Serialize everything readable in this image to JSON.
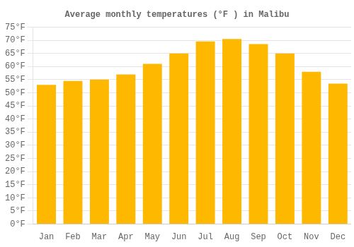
{
  "chart_data": {
    "type": "bar",
    "title": "Average monthly temperatures (°F ) in Malibu",
    "categories": [
      "Jan",
      "Feb",
      "Mar",
      "Apr",
      "May",
      "Jun",
      "Jul",
      "Aug",
      "Sep",
      "Oct",
      "Nov",
      "Dec"
    ],
    "values": [
      53,
      54.5,
      55,
      57,
      61,
      65,
      69.5,
      70.5,
      68.5,
      65,
      58,
      53.5
    ],
    "color": "#FFB800",
    "ylim": [
      0,
      75
    ],
    "yticks": [
      {
        "value": 0,
        "label": "0°F"
      },
      {
        "value": 5,
        "label": "5°F"
      },
      {
        "value": 10,
        "label": "10°F"
      },
      {
        "value": 15,
        "label": "15°F"
      },
      {
        "value": 20,
        "label": "20°F"
      },
      {
        "value": 25,
        "label": "25°F"
      },
      {
        "value": 30,
        "label": "30°F"
      },
      {
        "value": 35,
        "label": "35°F"
      },
      {
        "value": 40,
        "label": "40°F"
      },
      {
        "value": 45,
        "label": "45°F"
      },
      {
        "value": 50,
        "label": "50°F"
      },
      {
        "value": 55,
        "label": "55°F"
      },
      {
        "value": 60,
        "label": "60°F"
      },
      {
        "value": 65,
        "label": "65°F"
      },
      {
        "value": 70,
        "label": "70°F"
      },
      {
        "value": 75,
        "label": "75°F"
      }
    ],
    "grid": true
  }
}
